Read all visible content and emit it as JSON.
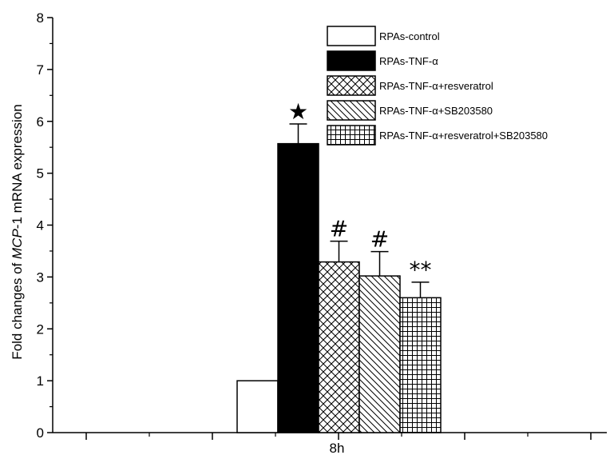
{
  "chart_data": {
    "type": "bar",
    "xlabel": "8h",
    "ylabel_parts": [
      "Fold changes of ",
      "MCP",
      "-1 mRNA expression"
    ],
    "ylim": [
      0,
      8
    ],
    "yticks": [
      "0",
      "1",
      "2",
      "3",
      "4",
      "5",
      "6",
      "7",
      "8"
    ],
    "grid": false,
    "legend_position": "top-right",
    "categories": [
      "8h"
    ],
    "series": [
      {
        "name": "RPAs-control",
        "values": [
          1.0
        ],
        "error": [
          0
        ],
        "pattern": "none",
        "annotation": ""
      },
      {
        "name": "RPAs-TNF-α",
        "values": [
          5.57
        ],
        "error": [
          0.38
        ],
        "pattern": "solid",
        "annotation": "★"
      },
      {
        "name": "RPAs-TNF-α+resveratrol",
        "values": [
          3.29
        ],
        "error": [
          0.4
        ],
        "pattern": "crosshatch",
        "annotation": "#"
      },
      {
        "name": "RPAs-TNF-α+SB203580",
        "values": [
          3.02
        ],
        "error": [
          0.47
        ],
        "pattern": "diagonal",
        "annotation": "#"
      },
      {
        "name": "RPAs-TNF-α+resveratrol+SB203580",
        "values": [
          2.6
        ],
        "error": [
          0.3
        ],
        "pattern": "grid",
        "annotation": "**"
      }
    ]
  }
}
